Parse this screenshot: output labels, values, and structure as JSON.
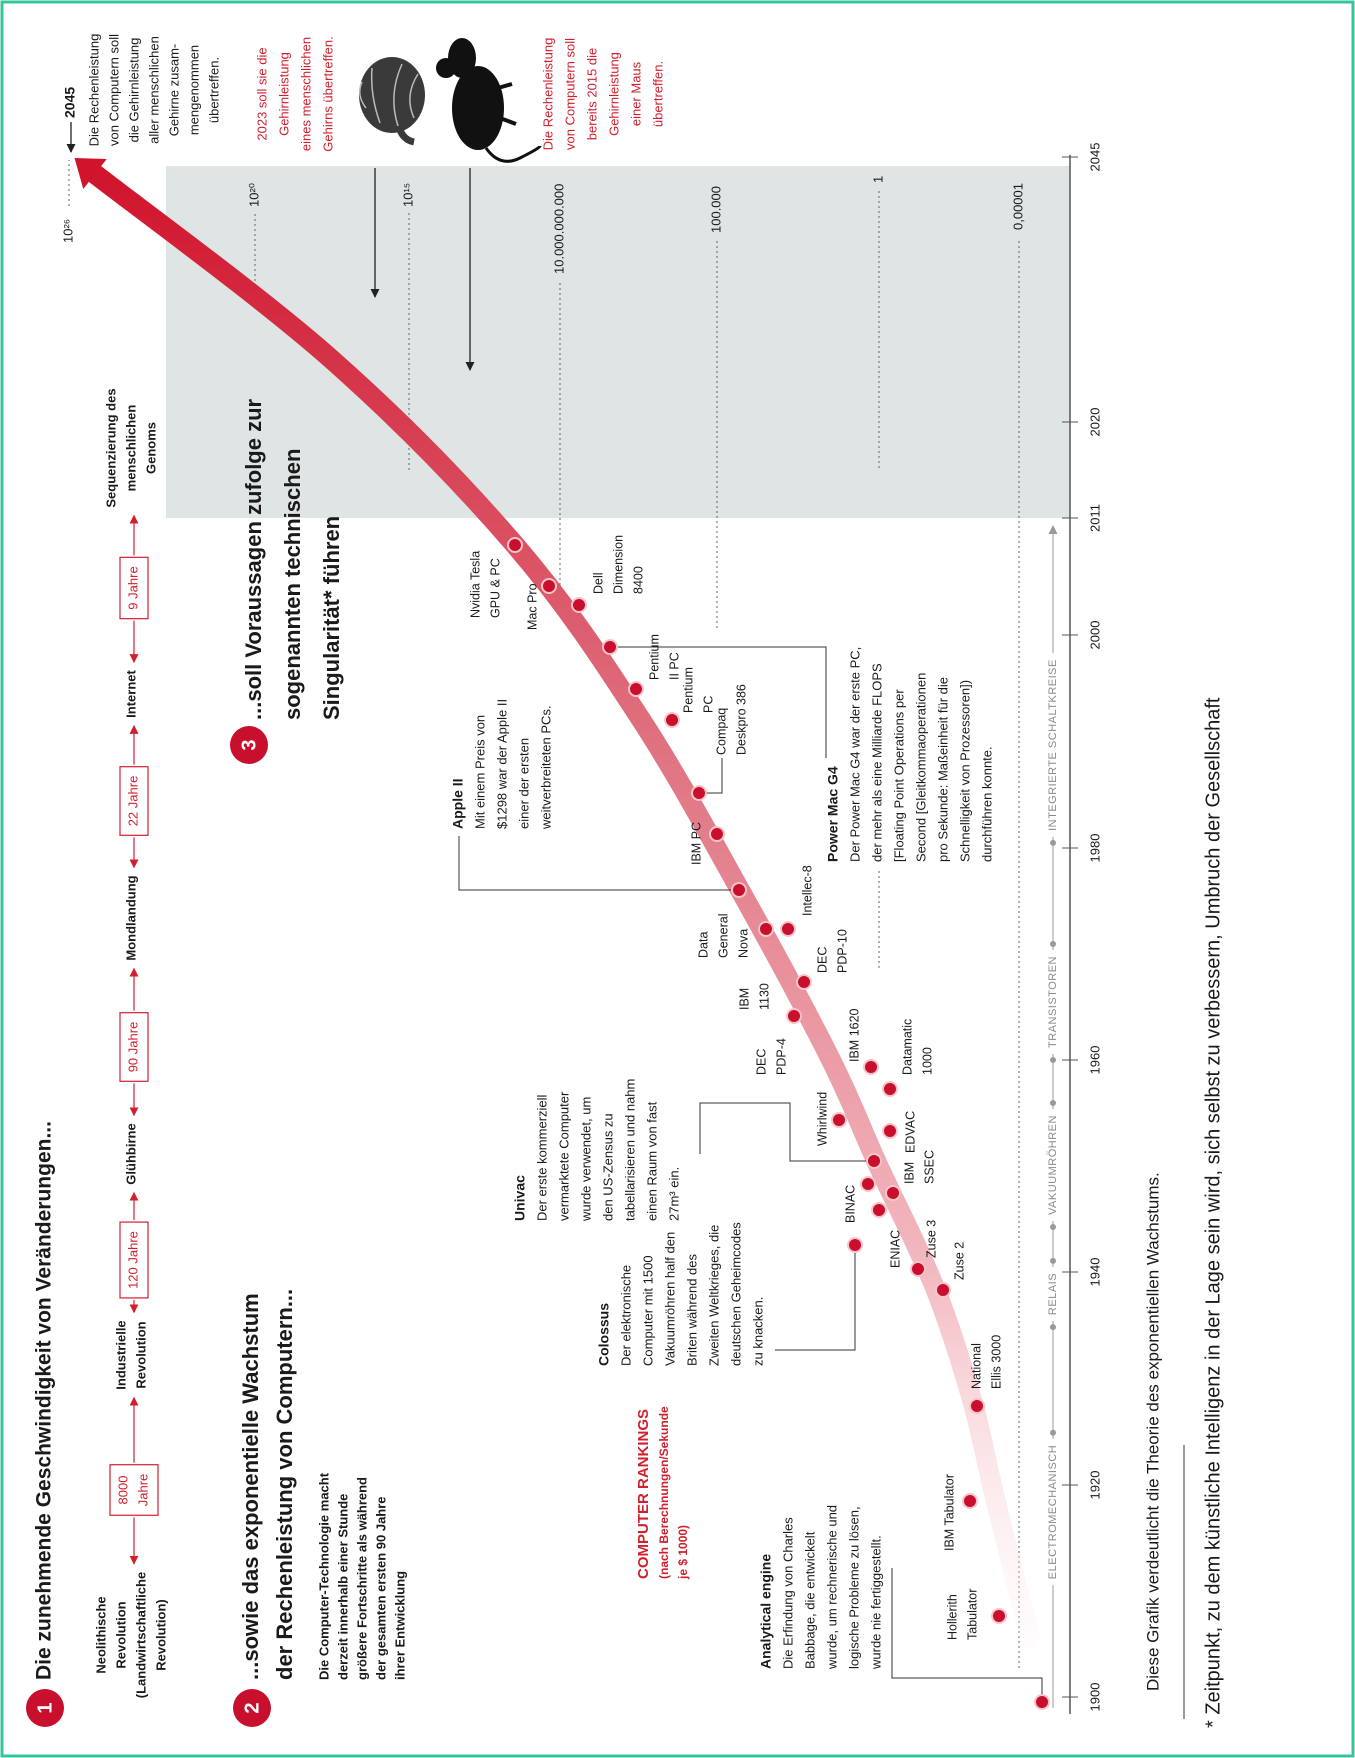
{
  "section1": {
    "number": "1",
    "title": "Die zunehmende Geschwindigkeit von Veränderungen...",
    "milestones": [
      [
        "Neolithische",
        "Revolution",
        "(Landwirtschaftliche",
        "Revolution)"
      ],
      [
        "Industrielle",
        "Revolution"
      ],
      [
        "Glühbirne"
      ],
      [
        "Mondlandung"
      ],
      [
        "Internet"
      ],
      [
        "Sequenzierung des",
        "menschlichen",
        "Genoms"
      ]
    ],
    "intervals": [
      [
        "8000",
        "Jahre"
      ],
      [
        "120 Jahre"
      ],
      [
        "90 Jahre"
      ],
      [
        "22 Jahre"
      ],
      [
        "9 Jahre"
      ]
    ]
  },
  "section2": {
    "number": "2",
    "title_lines": [
      "...sowie das exponentielle Wachstum",
      "der Rechenleistung von Computern..."
    ],
    "text_lines": [
      "Die Computer-Technologie macht",
      "derzeit innerhalb einer Stunde",
      "größere Fortschritte als während",
      "der gesamten ersten 90 Jahre",
      "ihrer Entwicklung"
    ]
  },
  "section3": {
    "number": "3",
    "title_lines": [
      "...soll Voraussagen zufolge zur",
      "sogenannten technischen",
      "Singularität* führen"
    ]
  },
  "rankings": {
    "title": "COMPUTER RANKINGS",
    "subtitle_lines": [
      "(nach Berechnungen/Sekunde",
      "je $ 1000)"
    ]
  },
  "scale": [
    "10²⁶",
    "10²⁰",
    "10¹⁵",
    "10.000.000.000",
    "100.000",
    "1",
    "0,00001"
  ],
  "axis": {
    "years": [
      "1900",
      "1920",
      "1940",
      "1960",
      "1980",
      "2000",
      "2011",
      "2020",
      "2045"
    ],
    "eras": [
      "ELECTROMECHANISCH",
      "RELAIS",
      "VAKUUMRÖHREN",
      "TRANSISTOREN",
      "INTEGRIERTE SCHALTKREISE"
    ]
  },
  "computers": [
    [
      "Hollerith",
      "Tabulator"
    ],
    [
      "IBM Tabulator"
    ],
    [
      "National",
      "Ellis 3000"
    ],
    [
      "Zuse 2"
    ],
    [
      "Zuse 3"
    ],
    [
      "IBM",
      "SSEC"
    ],
    [
      "ENIAC"
    ],
    [
      "BINAC"
    ],
    [
      "EDVAC"
    ],
    [
      "Whirlwind"
    ],
    [
      "IBM 1620"
    ],
    [
      "Datamatic",
      "1000"
    ],
    [
      "DEC",
      "PDP-4"
    ],
    [
      "IBM",
      "1130"
    ],
    [
      "DEC",
      "PDP-10"
    ],
    [
      "Data",
      "General",
      "Nova"
    ],
    [
      "Intellec-8"
    ],
    [
      "IBM PC"
    ],
    [
      "Compaq",
      "Deskpro 386"
    ],
    [
      "Pentium",
      "PC"
    ],
    [
      "Pentium",
      "II PC"
    ],
    [
      "Dell",
      "Dimension",
      "8400"
    ],
    [
      "Mac Pro"
    ],
    [
      "Nvidia Tesla",
      "GPU & PC"
    ]
  ],
  "notes": [
    {
      "title": "Analytical engine",
      "lines": [
        "Die Erfindung von Charles",
        "Babbage, die entwickelt",
        "wurde, um rechnerische und",
        "logische Probleme zu lösen,",
        "wurde nie fertiggestellt."
      ]
    },
    {
      "title": "Colossus",
      "lines": [
        "Der elektronische",
        "Computer mit 1500",
        "Vakuumröhren half den",
        "Briten während des",
        "Zweiten Weltkrieges, die",
        "deutschen Geheimcodes",
        "zu knacken."
      ]
    },
    {
      "title": "Univac",
      "lines": [
        "Der erste kommerziell",
        "vermarktete Computer",
        "wurde verwendet, um",
        "den US-Zensus zu",
        "tabellarisieren und nahm",
        "einen Raum von fast",
        "27m³ ein."
      ]
    },
    {
      "title": "Apple II",
      "lines": [
        "Mit einem Preis von",
        "$1298 war der Apple II",
        "einer der ersten",
        "weitverbreiteten PCs."
      ]
    },
    {
      "title": "Power Mac G4",
      "lines": [
        "Der Power Mac G4 war der erste PC,",
        "der mehr als eine Milliarde FLOPS",
        "[Floating Point Operations per",
        "Second [Gleitkommaoperationen",
        "pro Sekunde: Maßeinheit für die",
        "Schnelligkeit von Prozessoren])",
        "durchführen konnte."
      ]
    }
  ],
  "predictions": {
    "mouse": [
      "Die Rechenleistung",
      "von Computern soll",
      "bereits 2015 die",
      "Gehirnleistung",
      "einer Maus",
      "übertreffen."
    ],
    "brain": [
      "2023 soll sie die",
      "Gehirnleistung",
      "eines menschlichen",
      "Gehirns übertreffen."
    ],
    "year": "2045",
    "all_brains": [
      "Die Rechenleistung",
      "von Computern soll",
      "die Gehirnleistung",
      "aller menschlichen",
      "Gehirne zusam-",
      "mengenommen",
      "übertreffen."
    ]
  },
  "footer": {
    "caption": "Diese Grafik verdeutlicht die Theorie des exponentiellen Wachstums.",
    "footnote": "* Zeitpunkt, zu dem künstliche Intelligenz in der Lage sein wird, sich selbst zu verbessern, Umbruch der Gesellschaft"
  }
}
